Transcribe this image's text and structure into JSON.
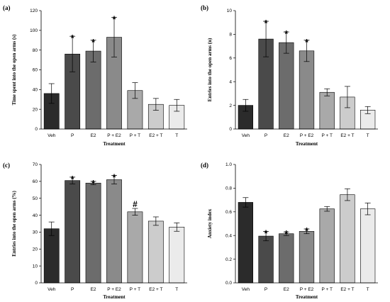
{
  "chart_data": [
    {
      "type": "bar",
      "panel": "(a)",
      "categories": [
        "Veh",
        "P",
        "E2",
        "P + E2",
        "P + T",
        "E2 + T",
        "T"
      ],
      "values": [
        36,
        76,
        79,
        93,
        39,
        25,
        24
      ],
      "errors": [
        10,
        18,
        11,
        20,
        8,
        6,
        6
      ],
      "markers": [
        "",
        "*",
        "*",
        "*",
        "",
        "",
        ""
      ],
      "colors": [
        "#2b2b2b",
        "#4a4a4a",
        "#6c6c6c",
        "#8a8a8a",
        "#a9a9a9",
        "#cccccc",
        "#ebebeb"
      ],
      "xlabel": "Treatment",
      "ylabel": "Time spent into the open arms (s)",
      "ylim": [
        0,
        120
      ],
      "yticks": [
        0,
        20,
        40,
        60,
        80,
        100,
        120
      ]
    },
    {
      "type": "bar",
      "panel": "(b)",
      "categories": [
        "Veh",
        "P",
        "E2",
        "P + E2",
        "P + T",
        "E2 + T",
        "T"
      ],
      "values": [
        2,
        7.6,
        7.3,
        6.6,
        3.1,
        2.7,
        1.6
      ],
      "errors": [
        0.5,
        1.5,
        0.9,
        0.9,
        0.3,
        0.9,
        0.3
      ],
      "markers": [
        "",
        "*",
        "*",
        "*",
        "",
        "",
        ""
      ],
      "colors": [
        "#2b2b2b",
        "#4a4a4a",
        "#6c6c6c",
        "#8a8a8a",
        "#a9a9a9",
        "#cccccc",
        "#ebebeb"
      ],
      "xlabel": "Treatment",
      "ylabel": "Entries into the open arms (n)",
      "ylim": [
        0,
        10
      ],
      "yticks": [
        0,
        2,
        4,
        6,
        8,
        10
      ]
    },
    {
      "type": "bar",
      "panel": "(c)",
      "categories": [
        "Veh",
        "P",
        "E2",
        "P + E2",
        "P + T",
        "E2 + T",
        "T"
      ],
      "values": [
        32,
        60.5,
        59,
        61,
        42,
        36.5,
        33
      ],
      "errors": [
        4,
        2,
        1,
        2.5,
        2,
        2.5,
        2.5
      ],
      "markers": [
        "",
        "*",
        "*",
        "*",
        "#",
        "",
        ""
      ],
      "colors": [
        "#2b2b2b",
        "#4a4a4a",
        "#6c6c6c",
        "#8a8a8a",
        "#a9a9a9",
        "#cccccc",
        "#ebebeb"
      ],
      "xlabel": "Treatment",
      "ylabel": "Entries into the open arms (%)",
      "ylim": [
        0,
        70
      ],
      "yticks": [
        0,
        10,
        20,
        30,
        40,
        50,
        60,
        70
      ]
    },
    {
      "type": "bar",
      "panel": "(d)",
      "categories": [
        "Veh",
        "P",
        "E2",
        "P + E2",
        "P + T",
        "E2 + T",
        "T"
      ],
      "values": [
        0.68,
        0.395,
        0.415,
        0.435,
        0.625,
        0.745,
        0.625
      ],
      "errors": [
        0.04,
        0.04,
        0.015,
        0.02,
        0.02,
        0.05,
        0.05
      ],
      "markers": [
        "",
        "*",
        "*",
        "*",
        "",
        "",
        ""
      ],
      "colors": [
        "#2b2b2b",
        "#4a4a4a",
        "#6c6c6c",
        "#8a8a8a",
        "#a9a9a9",
        "#cccccc",
        "#ebebeb"
      ],
      "xlabel": "Treatment",
      "ylabel": "Anxiety index",
      "ylim": [
        0.0,
        1.0
      ],
      "yticks": [
        "0.0",
        "0.2",
        "0.4",
        "0.6",
        "0.8",
        "1.0"
      ]
    }
  ]
}
